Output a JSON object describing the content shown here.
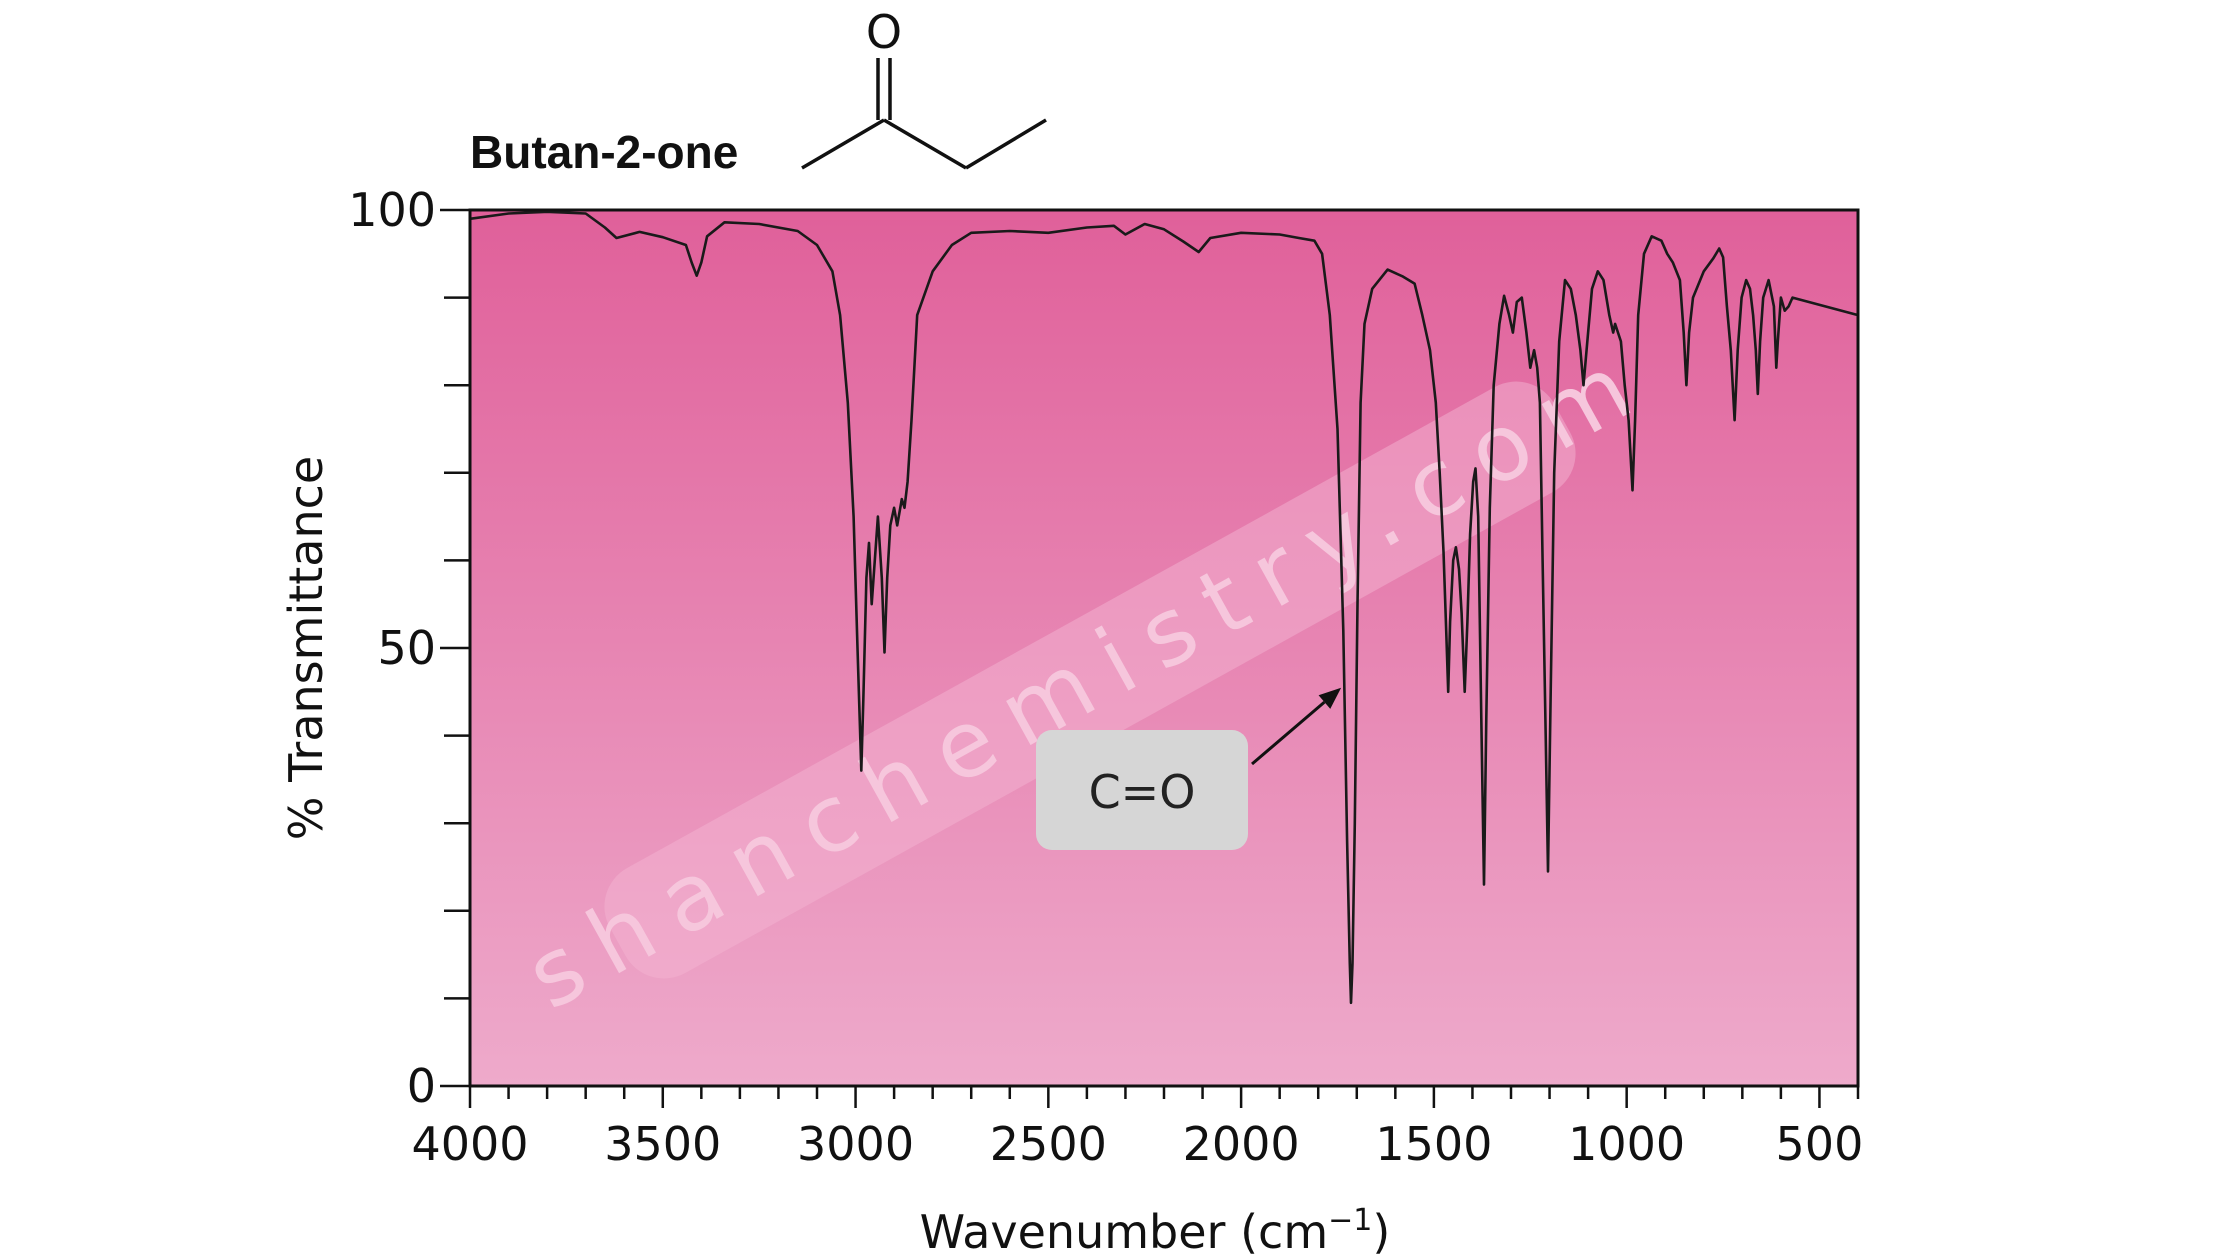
{
  "chart_data": {
    "type": "line",
    "title": "Butan-2-one",
    "xlabel": "Wavenumber (cm",
    "xlabel_sup": "−1",
    "xlabel_close": ")",
    "ylabel": "% Transmittance",
    "xlim": [
      4000,
      400
    ],
    "ylim": [
      0,
      100
    ],
    "x_ticks": [
      4000,
      3500,
      3000,
      2500,
      2000,
      1500,
      1000,
      500
    ],
    "x_tick_labels": [
      "4000",
      "3500",
      "3000",
      "2500",
      "2000",
      "1500",
      "1000",
      "500"
    ],
    "y_ticks": [
      0,
      50,
      100
    ],
    "y_tick_labels": [
      "0",
      "50",
      "100"
    ],
    "grid": false,
    "background_gradient": [
      "#e0609a",
      "#eeaacb"
    ],
    "line_color": "#1a1a1a",
    "series": [
      {
        "points": [
          [
            4000,
            99
          ],
          [
            3900,
            99.6
          ],
          [
            3800,
            99.8
          ],
          [
            3700,
            99.6
          ],
          [
            3650,
            98
          ],
          [
            3620,
            96.8
          ],
          [
            3560,
            97.5
          ],
          [
            3500,
            96.9
          ],
          [
            3440,
            96
          ],
          [
            3425,
            94
          ],
          [
            3412,
            92.5
          ],
          [
            3400,
            94
          ],
          [
            3385,
            97
          ],
          [
            3340,
            98.6
          ],
          [
            3250,
            98.4
          ],
          [
            3150,
            97.6
          ],
          [
            3100,
            96
          ],
          [
            3060,
            93
          ],
          [
            3040,
            88
          ],
          [
            3020,
            78
          ],
          [
            3005,
            65
          ],
          [
            2995,
            50
          ],
          [
            2990,
            43
          ],
          [
            2985,
            36
          ],
          [
            2980,
            44
          ],
          [
            2972,
            58
          ],
          [
            2965,
            62
          ],
          [
            2958,
            55
          ],
          [
            2950,
            60
          ],
          [
            2942,
            65
          ],
          [
            2932,
            58
          ],
          [
            2925,
            49.5
          ],
          [
            2918,
            58
          ],
          [
            2910,
            64
          ],
          [
            2900,
            66
          ],
          [
            2892,
            64
          ],
          [
            2880,
            67
          ],
          [
            2873,
            66
          ],
          [
            2865,
            69
          ],
          [
            2855,
            76
          ],
          [
            2840,
            88
          ],
          [
            2800,
            93
          ],
          [
            2750,
            96
          ],
          [
            2700,
            97.4
          ],
          [
            2600,
            97.6
          ],
          [
            2500,
            97.4
          ],
          [
            2400,
            98
          ],
          [
            2330,
            98.2
          ],
          [
            2300,
            97.2
          ],
          [
            2250,
            98.4
          ],
          [
            2200,
            97.8
          ],
          [
            2150,
            96.4
          ],
          [
            2110,
            95.2
          ],
          [
            2080,
            96.8
          ],
          [
            2000,
            97.4
          ],
          [
            1900,
            97.2
          ],
          [
            1850,
            96.8
          ],
          [
            1810,
            96.5
          ],
          [
            1790,
            95
          ],
          [
            1770,
            88
          ],
          [
            1750,
            75
          ],
          [
            1735,
            52
          ],
          [
            1725,
            28
          ],
          [
            1718,
            14
          ],
          [
            1715,
            9.5
          ],
          [
            1711,
            14
          ],
          [
            1705,
            30
          ],
          [
            1698,
            55
          ],
          [
            1690,
            78
          ],
          [
            1680,
            87
          ],
          [
            1660,
            91
          ],
          [
            1620,
            93.2
          ],
          [
            1580,
            92.4
          ],
          [
            1550,
            91.6
          ],
          [
            1530,
            88
          ],
          [
            1510,
            84
          ],
          [
            1495,
            78
          ],
          [
            1485,
            70
          ],
          [
            1475,
            61
          ],
          [
            1468,
            52
          ],
          [
            1463,
            45
          ],
          [
            1458,
            53
          ],
          [
            1450,
            60
          ],
          [
            1443,
            61.5
          ],
          [
            1435,
            59
          ],
          [
            1428,
            54
          ],
          [
            1420,
            45
          ],
          [
            1413,
            53
          ],
          [
            1406,
            63
          ],
          [
            1398,
            69
          ],
          [
            1392,
            70.5
          ],
          [
            1385,
            65
          ],
          [
            1377,
            42
          ],
          [
            1370,
            23
          ],
          [
            1364,
            42
          ],
          [
            1355,
            66
          ],
          [
            1345,
            80
          ],
          [
            1330,
            87
          ],
          [
            1318,
            90.2
          ],
          [
            1305,
            88
          ],
          [
            1295,
            86
          ],
          [
            1285,
            89.5
          ],
          [
            1272,
            90
          ],
          [
            1260,
            86
          ],
          [
            1250,
            82
          ],
          [
            1240,
            84
          ],
          [
            1232,
            82
          ],
          [
            1225,
            78
          ],
          [
            1218,
            60
          ],
          [
            1210,
            40
          ],
          [
            1204,
            24.5
          ],
          [
            1197,
            45
          ],
          [
            1188,
            70
          ],
          [
            1175,
            85
          ],
          [
            1160,
            92
          ],
          [
            1145,
            91
          ],
          [
            1132,
            88
          ],
          [
            1120,
            84
          ],
          [
            1112,
            80
          ],
          [
            1100,
            86
          ],
          [
            1090,
            91
          ],
          [
            1075,
            93
          ],
          [
            1060,
            92
          ],
          [
            1045,
            88
          ],
          [
            1035,
            86
          ],
          [
            1030,
            87
          ],
          [
            1015,
            85
          ],
          [
            1005,
            80
          ],
          [
            995,
            76
          ],
          [
            985,
            68
          ],
          [
            978,
            76
          ],
          [
            970,
            88
          ],
          [
            955,
            95
          ],
          [
            935,
            97
          ],
          [
            910,
            96.5
          ],
          [
            895,
            95
          ],
          [
            880,
            94
          ],
          [
            862,
            92
          ],
          [
            852,
            86
          ],
          [
            845,
            80
          ],
          [
            838,
            86
          ],
          [
            828,
            90
          ],
          [
            800,
            93
          ],
          [
            775,
            94.5
          ],
          [
            760,
            95.6
          ],
          [
            750,
            94.6
          ],
          [
            740,
            89
          ],
          [
            730,
            84
          ],
          [
            720,
            76
          ],
          [
            712,
            84
          ],
          [
            702,
            90
          ],
          [
            690,
            92
          ],
          [
            680,
            91
          ],
          [
            672,
            88
          ],
          [
            665,
            84
          ],
          [
            660,
            79
          ],
          [
            654,
            85
          ],
          [
            646,
            90
          ],
          [
            632,
            92
          ],
          [
            618,
            89
          ],
          [
            612,
            82
          ],
          [
            608,
            85
          ],
          [
            600,
            90
          ],
          [
            590,
            88.5
          ],
          [
            580,
            89
          ],
          [
            570,
            90
          ]
        ]
      }
    ],
    "annotations": [
      {
        "text": "C=O",
        "points_to_x": 1725,
        "points_to_y": 45
      }
    ]
  },
  "molecule": {
    "name": "Butan-2-one",
    "atom_label": "O"
  },
  "watermark": {
    "text": "shanchemistry.com"
  }
}
